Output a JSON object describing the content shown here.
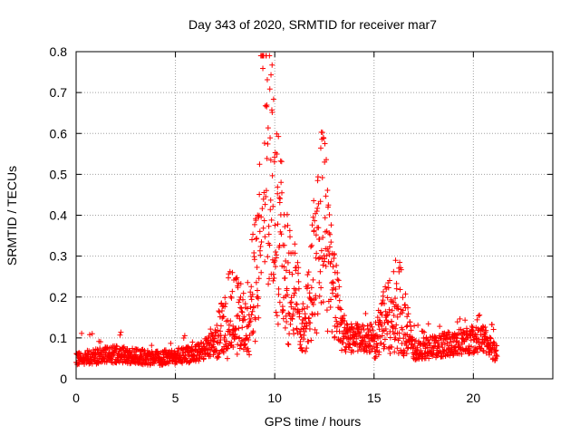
{
  "chart_data": {
    "type": "scatter",
    "title": "Day 343 of 2020, SRMTID for receiver mar7",
    "xlabel": "GPS time / hours",
    "ylabel": "SRMTID / TECUs",
    "xlim": [
      0,
      24
    ],
    "ylim": [
      0,
      0.8
    ],
    "xticks": [
      0,
      5,
      10,
      15,
      20
    ],
    "yticks": [
      0,
      0.1,
      0.2,
      0.3,
      0.4,
      0.5,
      0.6,
      0.7,
      0.8
    ],
    "xtick_labels": [
      "0",
      "5",
      "10",
      "15",
      "20"
    ],
    "ytick_labels": [
      "0",
      "0.1",
      "0.2",
      "0.3",
      "0.4",
      "0.5",
      "0.6",
      "0.7",
      "0.8"
    ],
    "grid": true,
    "marker": "+",
    "color": "#ff0000",
    "series": [
      {
        "name": "SRMTID",
        "x_range_hours": [
          0,
          21.2
        ],
        "envelope": [
          {
            "x": 0.0,
            "y": 0.05
          },
          {
            "x": 2.0,
            "y": 0.06
          },
          {
            "x": 4.0,
            "y": 0.05
          },
          {
            "x": 6.0,
            "y": 0.06
          },
          {
            "x": 7.0,
            "y": 0.09
          },
          {
            "x": 7.8,
            "y": 0.18
          },
          {
            "x": 8.5,
            "y": 0.14
          },
          {
            "x": 9.2,
            "y": 0.3
          },
          {
            "x": 9.4,
            "y": 0.76
          },
          {
            "x": 9.8,
            "y": 0.6
          },
          {
            "x": 10.0,
            "y": 0.45
          },
          {
            "x": 10.5,
            "y": 0.3
          },
          {
            "x": 11.0,
            "y": 0.22
          },
          {
            "x": 11.5,
            "y": 0.12
          },
          {
            "x": 12.0,
            "y": 0.3
          },
          {
            "x": 12.5,
            "y": 0.45
          },
          {
            "x": 13.0,
            "y": 0.2
          },
          {
            "x": 13.5,
            "y": 0.1
          },
          {
            "x": 15.0,
            "y": 0.1
          },
          {
            "x": 16.2,
            "y": 0.2
          },
          {
            "x": 17.0,
            "y": 0.07
          },
          {
            "x": 20.5,
            "y": 0.1
          },
          {
            "x": 21.2,
            "y": 0.06
          }
        ]
      }
    ]
  }
}
